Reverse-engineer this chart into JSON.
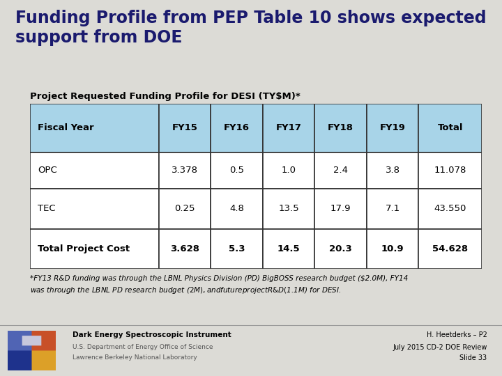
{
  "title": "Funding Profile from PEP Table 10 shows expected\nsupport from DOE",
  "subtitle": "Project Requested Funding Profile for DESI (TY$M)*",
  "background_color": "#dcdbd6",
  "title_color": "#1a1a6e",
  "title_fontsize": 17,
  "subtitle_fontsize": 9.5,
  "header_row": [
    "Fiscal Year",
    "FY15",
    "FY16",
    "FY17",
    "FY18",
    "FY19",
    "Total"
  ],
  "rows": [
    [
      "OPC",
      "3.378",
      "0.5",
      "1.0",
      "2.4",
      "3.8",
      "11.078"
    ],
    [
      "TEC",
      "0.25",
      "4.8",
      "13.5",
      "17.9",
      "7.1",
      "43.550"
    ],
    [
      "Total Project Cost",
      "3.628",
      "5.3",
      "14.5",
      "20.3",
      "10.9",
      "54.628"
    ]
  ],
  "header_bg": "#a8d4e8",
  "row_bg": "#ffffff",
  "table_border_color": "#333333",
  "footnote": "*FY13 R&D funding was through the LBNL Physics Division (PD) BigBOSS research budget ($2.0M), FY14\nwas through the LBNL PD research budget ($2M), and future project R&D ($1.1M) for DESI.",
  "footnote_fontsize": 7.5,
  "footer_bg": "#dcdbd6",
  "footer_left_line1": "Dark Energy Spectroscopic Instrument",
  "footer_left_line2": "U.S. Department of Energy Office of Science",
  "footer_left_line3": "Lawrence Berkeley National Laboratory",
  "footer_right_line1": "H. Heetderks – P2",
  "footer_right_line2": "July 2015 CD-2 DOE Review",
  "footer_right_line3": "Slide 33",
  "footer_fontsize": 7
}
